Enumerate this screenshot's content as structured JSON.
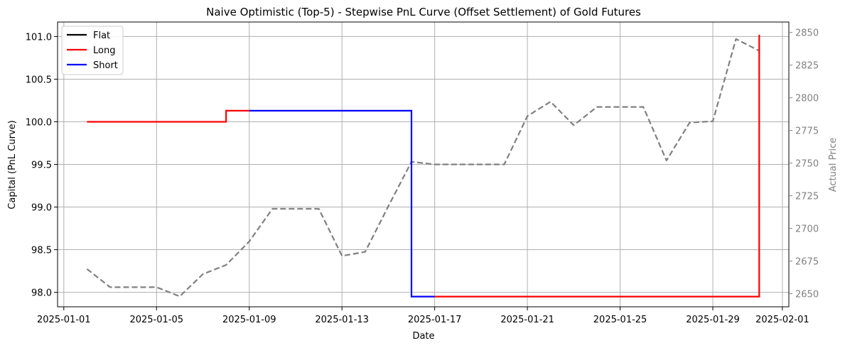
{
  "chart_data": {
    "type": "line",
    "title": "Naive Optimistic (Top-5) - Stepwise PnL Curve (Offset Settlement) of Gold Futures",
    "xlabel": "Date",
    "ylabel_left": "Capital (PnL Curve)",
    "ylabel_right": "Actual Price",
    "x_tick_labels": [
      "2025-01-01",
      "2025-01-05",
      "2025-01-09",
      "2025-01-13",
      "2025-01-17",
      "2025-01-21",
      "2025-01-25",
      "2025-01-29",
      "2025-02-01"
    ],
    "xlim": [
      "2025-01-01",
      "2025-02-01"
    ],
    "ylim_left": [
      97.83,
      101.17
    ],
    "ylim_right": [
      2640,
      2858
    ],
    "y_ticks_left": [
      98.0,
      98.5,
      99.0,
      99.5,
      100.0,
      100.5,
      101.0
    ],
    "y_tick_labels_left": [
      "98.0",
      "98.5",
      "99.0",
      "99.5",
      "100.0",
      "100.5",
      "101.0"
    ],
    "y_ticks_right": [
      2650,
      2675,
      2700,
      2725,
      2750,
      2775,
      2800,
      2825,
      2850
    ],
    "y_tick_labels_right": [
      "2650",
      "2675",
      "2700",
      "2725",
      "2750",
      "2775",
      "2800",
      "2825",
      "2850"
    ],
    "grid": true,
    "legend_position": "upper-left",
    "legend": [
      {
        "label": "Flat",
        "color": "#000000"
      },
      {
        "label": "Long",
        "color": "#ff0000"
      },
      {
        "label": "Short",
        "color": "#0000ff"
      }
    ],
    "pnl_segments": [
      {
        "position": "Long",
        "color": "#ff0000",
        "points": [
          [
            "2025-01-02",
            100.0
          ],
          [
            "2025-01-08",
            100.0
          ],
          [
            "2025-01-08",
            100.13
          ],
          [
            "2025-01-09",
            100.13
          ]
        ]
      },
      {
        "position": "Short",
        "color": "#0000ff",
        "points": [
          [
            "2025-01-09",
            100.13
          ],
          [
            "2025-01-16",
            100.13
          ],
          [
            "2025-01-16",
            97.95
          ],
          [
            "2025-01-17",
            97.95
          ]
        ]
      },
      {
        "position": "Long",
        "color": "#ff0000",
        "points": [
          [
            "2025-01-17",
            97.95
          ],
          [
            "2025-01-31",
            97.95
          ],
          [
            "2025-01-31",
            101.02
          ]
        ]
      }
    ],
    "price_series": {
      "name": "Actual Price",
      "color": "#808080",
      "style": "dashed",
      "points": [
        [
          "2025-01-02",
          2669
        ],
        [
          "2025-01-03",
          2655
        ],
        [
          "2025-01-04",
          2655
        ],
        [
          "2025-01-05",
          2655
        ],
        [
          "2025-01-06",
          2648
        ],
        [
          "2025-01-07",
          2665
        ],
        [
          "2025-01-08",
          2672
        ],
        [
          "2025-01-09",
          2690
        ],
        [
          "2025-01-10",
          2715
        ],
        [
          "2025-01-11",
          2715
        ],
        [
          "2025-01-12",
          2715
        ],
        [
          "2025-01-13",
          2679
        ],
        [
          "2025-01-14",
          2682
        ],
        [
          "2025-01-15",
          2717
        ],
        [
          "2025-01-16",
          2751
        ],
        [
          "2025-01-17",
          2749
        ],
        [
          "2025-01-18",
          2749
        ],
        [
          "2025-01-19",
          2749
        ],
        [
          "2025-01-20",
          2749
        ],
        [
          "2025-01-21",
          2786
        ],
        [
          "2025-01-22",
          2797
        ],
        [
          "2025-01-23",
          2779
        ],
        [
          "2025-01-24",
          2793
        ],
        [
          "2025-01-25",
          2793
        ],
        [
          "2025-01-26",
          2793
        ],
        [
          "2025-01-27",
          2752
        ],
        [
          "2025-01-28",
          2781
        ],
        [
          "2025-01-29",
          2782
        ],
        [
          "2025-01-30",
          2845
        ],
        [
          "2025-01-31",
          2836
        ]
      ]
    }
  }
}
